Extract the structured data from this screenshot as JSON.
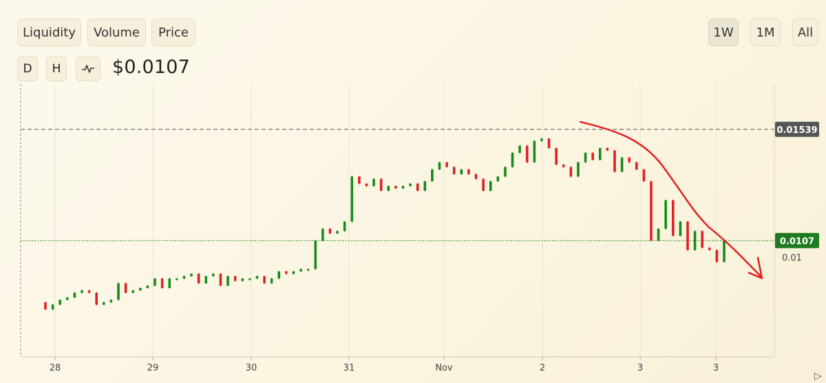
{
  "metric_tabs": [
    "Liquidity",
    "Volume",
    "Price"
  ],
  "range_tabs": [
    "1W",
    "1M",
    "All"
  ],
  "active_range": "1W",
  "interval_buttons": [
    "D",
    "H"
  ],
  "chart_icon": "line-chart-icon",
  "current_price": "$0.0107",
  "chart_data": {
    "type": "candlestick",
    "x_tick_labels": [
      "28",
      "29",
      "30",
      "31",
      "Nov",
      "2",
      "3",
      "3"
    ],
    "y_tick_labels": [
      "0.01"
    ],
    "y_range": [
      0.0058,
      0.0173
    ],
    "reference_lines": [
      {
        "label": "0.01539",
        "value": 0.01539,
        "style": "dashed",
        "color": "#555555"
      },
      {
        "label": "0.0107",
        "value": 0.0107,
        "style": "dotted",
        "color": "#1a8a1a",
        "badge_color": "#1f7a1f"
      }
    ],
    "colors": {
      "up": "#1a8a1a",
      "down": "#dd2222",
      "annotation": "#e31a1a"
    },
    "candles": [
      [
        0.0081,
        0.0078
      ],
      [
        0.0078,
        0.008
      ],
      [
        0.008,
        0.0082
      ],
      [
        0.0082,
        0.0083
      ],
      [
        0.0083,
        0.0085
      ],
      [
        0.0085,
        0.0086
      ],
      [
        0.0086,
        0.0085
      ],
      [
        0.0085,
        0.008
      ],
      [
        0.008,
        0.0081
      ],
      [
        0.0081,
        0.0082
      ],
      [
        0.0082,
        0.0089
      ],
      [
        0.0089,
        0.0085
      ],
      [
        0.0085,
        0.0086
      ],
      [
        0.0086,
        0.0087
      ],
      [
        0.0087,
        0.0088
      ],
      [
        0.0088,
        0.0091
      ],
      [
        0.0091,
        0.0087
      ],
      [
        0.0087,
        0.0091
      ],
      [
        0.0091,
        0.0091
      ],
      [
        0.0091,
        0.0092
      ],
      [
        0.0092,
        0.0093
      ],
      [
        0.0093,
        0.0089
      ],
      [
        0.0089,
        0.0092
      ],
      [
        0.0092,
        0.0093
      ],
      [
        0.0093,
        0.0088
      ],
      [
        0.0088,
        0.0092
      ],
      [
        0.0092,
        0.009
      ],
      [
        0.009,
        0.0091
      ],
      [
        0.0091,
        0.0091
      ],
      [
        0.0091,
        0.0092
      ],
      [
        0.0092,
        0.0089
      ],
      [
        0.0089,
        0.0091
      ],
      [
        0.0091,
        0.0094
      ],
      [
        0.0094,
        0.0093
      ],
      [
        0.0093,
        0.0094
      ],
      [
        0.0094,
        0.0095
      ],
      [
        0.0095,
        0.0095
      ],
      [
        0.0095,
        0.0107
      ],
      [
        0.0107,
        0.0112
      ],
      [
        0.0112,
        0.011
      ],
      [
        0.011,
        0.0111
      ],
      [
        0.0111,
        0.0115
      ],
      [
        0.0115,
        0.0134
      ],
      [
        0.0134,
        0.0131
      ],
      [
        0.0131,
        0.013
      ],
      [
        0.013,
        0.0133
      ],
      [
        0.0133,
        0.0128
      ],
      [
        0.0128,
        0.013
      ],
      [
        0.013,
        0.0129
      ],
      [
        0.0129,
        0.013
      ],
      [
        0.013,
        0.0131
      ],
      [
        0.0131,
        0.0128
      ],
      [
        0.0128,
        0.0132
      ],
      [
        0.0132,
        0.0137
      ],
      [
        0.0137,
        0.014
      ],
      [
        0.014,
        0.0138
      ],
      [
        0.0138,
        0.0135
      ],
      [
        0.0135,
        0.0137
      ],
      [
        0.0137,
        0.0135
      ],
      [
        0.0135,
        0.0133
      ],
      [
        0.0133,
        0.0128
      ],
      [
        0.0128,
        0.0132
      ],
      [
        0.0132,
        0.0134
      ],
      [
        0.0134,
        0.0138
      ],
      [
        0.0138,
        0.0144
      ],
      [
        0.0144,
        0.0147
      ],
      [
        0.0147,
        0.014
      ],
      [
        0.014,
        0.0149
      ],
      [
        0.0149,
        0.015
      ],
      [
        0.015,
        0.0146
      ],
      [
        0.0146,
        0.0139
      ],
      [
        0.0139,
        0.0138
      ],
      [
        0.0138,
        0.0134
      ],
      [
        0.0134,
        0.014
      ],
      [
        0.014,
        0.0144
      ],
      [
        0.0144,
        0.0141
      ],
      [
        0.0141,
        0.0146
      ],
      [
        0.0146,
        0.0145
      ],
      [
        0.0145,
        0.0136
      ],
      [
        0.0136,
        0.0142
      ],
      [
        0.0142,
        0.014
      ],
      [
        0.014,
        0.0137
      ],
      [
        0.0137,
        0.0132
      ],
      [
        0.0132,
        0.0107
      ],
      [
        0.0107,
        0.0112
      ],
      [
        0.0112,
        0.0124
      ],
      [
        0.0124,
        0.0109
      ],
      [
        0.0109,
        0.0115
      ],
      [
        0.0115,
        0.0103
      ],
      [
        0.0103,
        0.0111
      ],
      [
        0.0111,
        0.0104
      ],
      [
        0.0104,
        0.0103
      ],
      [
        0.0103,
        0.0098
      ],
      [
        0.0098,
        0.0107
      ]
    ],
    "annotation": "hand-drawn red downtrend arrow"
  }
}
